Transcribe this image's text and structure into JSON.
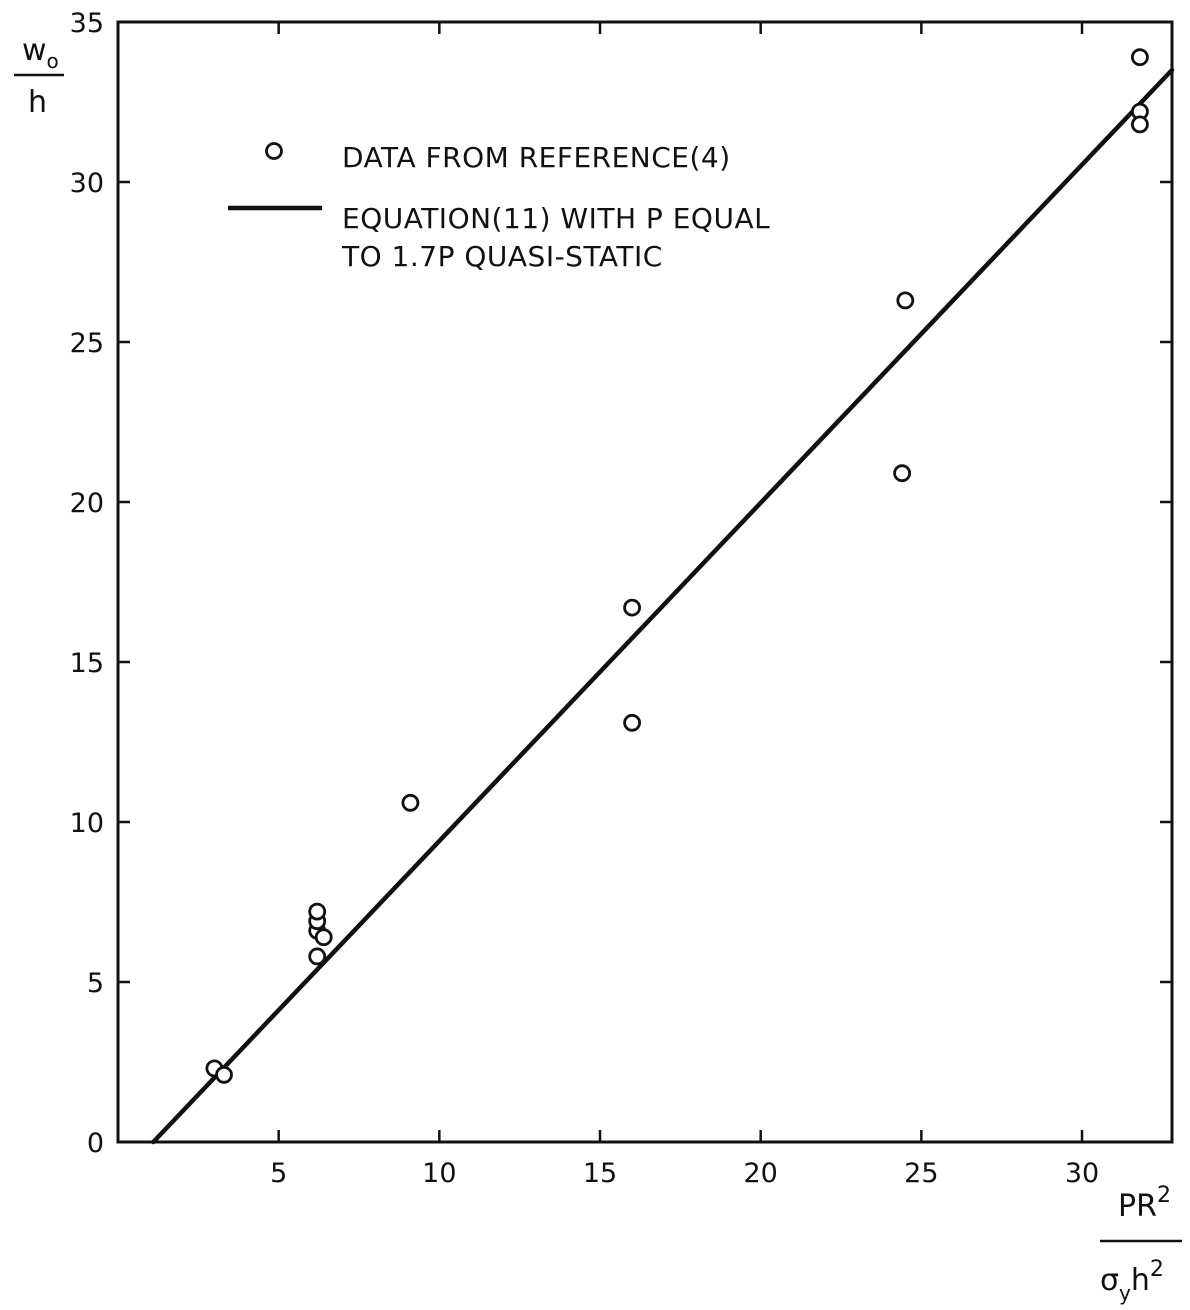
{
  "chart_data": {
    "type": "scatter",
    "xlabel": {
      "numerator": "PR",
      "numerator_sup": "2",
      "denominator_sym": "σ",
      "denominator_sub": "y",
      "denominator_tail": "h",
      "denominator_sup": "2"
    },
    "ylabel": {
      "numerator": "w",
      "numerator_sub": "o",
      "denominator": "h"
    },
    "xlim": [
      0,
      32.8
    ],
    "ylim": [
      0,
      35
    ],
    "x_ticks": [
      5,
      10,
      15,
      20,
      25,
      30
    ],
    "y_ticks": [
      0,
      5,
      10,
      15,
      20,
      25,
      30,
      35
    ],
    "grid": false,
    "legend_position": "top-left",
    "series": [
      {
        "name": "DATA FROM REFERENCE(4)",
        "kind": "points",
        "marker": "open-circle",
        "points": [
          [
            3.0,
            2.3
          ],
          [
            3.3,
            2.1
          ],
          [
            6.2,
            5.8
          ],
          [
            6.2,
            6.6
          ],
          [
            6.2,
            6.9
          ],
          [
            6.2,
            7.2
          ],
          [
            6.4,
            6.4
          ],
          [
            9.1,
            10.6
          ],
          [
            16.0,
            16.7
          ],
          [
            16.0,
            13.1
          ],
          [
            24.5,
            26.3
          ],
          [
            24.4,
            20.9
          ],
          [
            31.8,
            33.9
          ],
          [
            31.8,
            32.2
          ],
          [
            31.8,
            31.8
          ]
        ]
      },
      {
        "name": "EQUATION(11) WITH P EQUAL TO 1.7P QUASI-STATIC",
        "kind": "line",
        "points": [
          [
            1.1,
            0
          ],
          [
            32.8,
            33.5
          ]
        ]
      }
    ],
    "legend": [
      {
        "marker": "open-circle",
        "lines": [
          "DATA FROM REFERENCE(4)"
        ]
      },
      {
        "marker": "line",
        "lines": [
          "EQUATION(11) WITH P EQUAL",
          "TO 1.7P QUASI-STATIC"
        ]
      }
    ]
  }
}
